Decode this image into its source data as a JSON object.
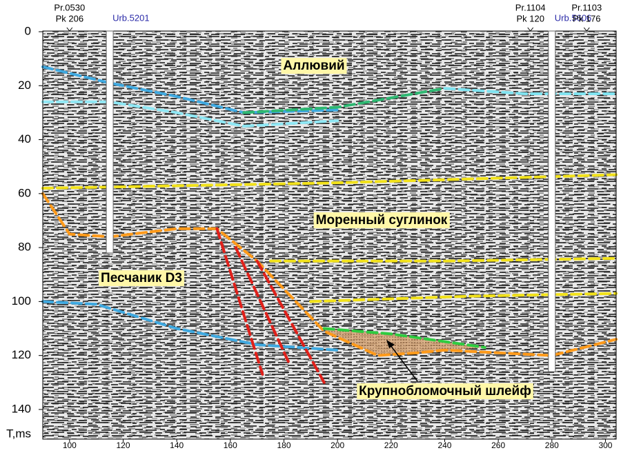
{
  "chart_data": {
    "type": "line",
    "ylabel": "T,ms",
    "xlim": [
      90,
      304
    ],
    "ylim": [
      0,
      151
    ],
    "y_inverted": true,
    "xticks": [
      100,
      120,
      140,
      160,
      180,
      200,
      220,
      240,
      260,
      280,
      300
    ],
    "yticks": [
      0,
      20,
      40,
      60,
      80,
      100,
      120,
      140
    ],
    "series": [
      {
        "color": "#3fa9e0",
        "x": [
          90,
          115,
          140,
          165,
          200
        ],
        "values": [
          13,
          19,
          24,
          30,
          29
        ]
      },
      {
        "color": "#2eb872",
        "x": [
          165,
          200,
          240
        ],
        "values": [
          30,
          28,
          21
        ]
      },
      {
        "color": "#7fe3f0",
        "x": [
          240,
          270,
          304
        ],
        "values": [
          21,
          23,
          23
        ]
      },
      {
        "color": "#8fe8f5",
        "x": [
          90,
          115,
          140,
          165,
          200
        ],
        "values": [
          26,
          26,
          30,
          35,
          33
        ]
      },
      {
        "color": "#f2e21a",
        "x": [
          90,
          200,
          304
        ],
        "values": [
          58,
          56,
          53
        ]
      },
      {
        "color": "#ff9a1a",
        "x": [
          90,
          100,
          115,
          140,
          155,
          170,
          195,
          215,
          230,
          240,
          280,
          304
        ],
        "values": [
          60,
          75,
          76,
          73,
          73,
          85,
          111,
          120,
          119,
          118,
          120,
          114
        ]
      },
      {
        "color": "#f2e21a",
        "x": [
          175,
          240,
          304
        ],
        "values": [
          85,
          85,
          84
        ]
      },
      {
        "color": "#f2e21a",
        "x": [
          190,
          250,
          304
        ],
        "values": [
          100,
          98,
          97
        ]
      },
      {
        "color": "#3fa9e0",
        "x": [
          90,
          110,
          140,
          170,
          200
        ],
        "values": [
          100,
          101,
          110,
          116,
          118
        ]
      },
      {
        "color": "#2ecc40",
        "x": [
          195,
          220,
          255
        ],
        "values": [
          110,
          112,
          117
        ]
      },
      {
        "color": "#e0201a",
        "x": [
          155,
          172
        ],
        "values": [
          73,
          127
        ]
      },
      {
        "color": "#e0201a",
        "x": [
          162,
          182
        ],
        "values": [
          80,
          123
        ]
      },
      {
        "color": "#e0201a",
        "x": [
          170,
          195
        ],
        "values": [
          85,
          130
        ]
      }
    ],
    "wells": [
      {
        "name": "Urb.5201",
        "x": 115,
        "depth": 82
      },
      {
        "name": "Urb.5606",
        "x": 280,
        "depth": 126
      }
    ],
    "top_labels": [
      {
        "x": 100,
        "lines": [
          "Pr.0530",
          "Pk 206"
        ]
      },
      {
        "x": 272,
        "lines": [
          "Pr.1104",
          "Pk 120"
        ]
      },
      {
        "x": 293,
        "lines": [
          "Pr.1103",
          "Pk 176"
        ]
      }
    ],
    "annotations": [
      "Аллювий",
      "Моренный суглинок",
      "Песчаник D3",
      "Крупнобломочный шлейф"
    ]
  }
}
